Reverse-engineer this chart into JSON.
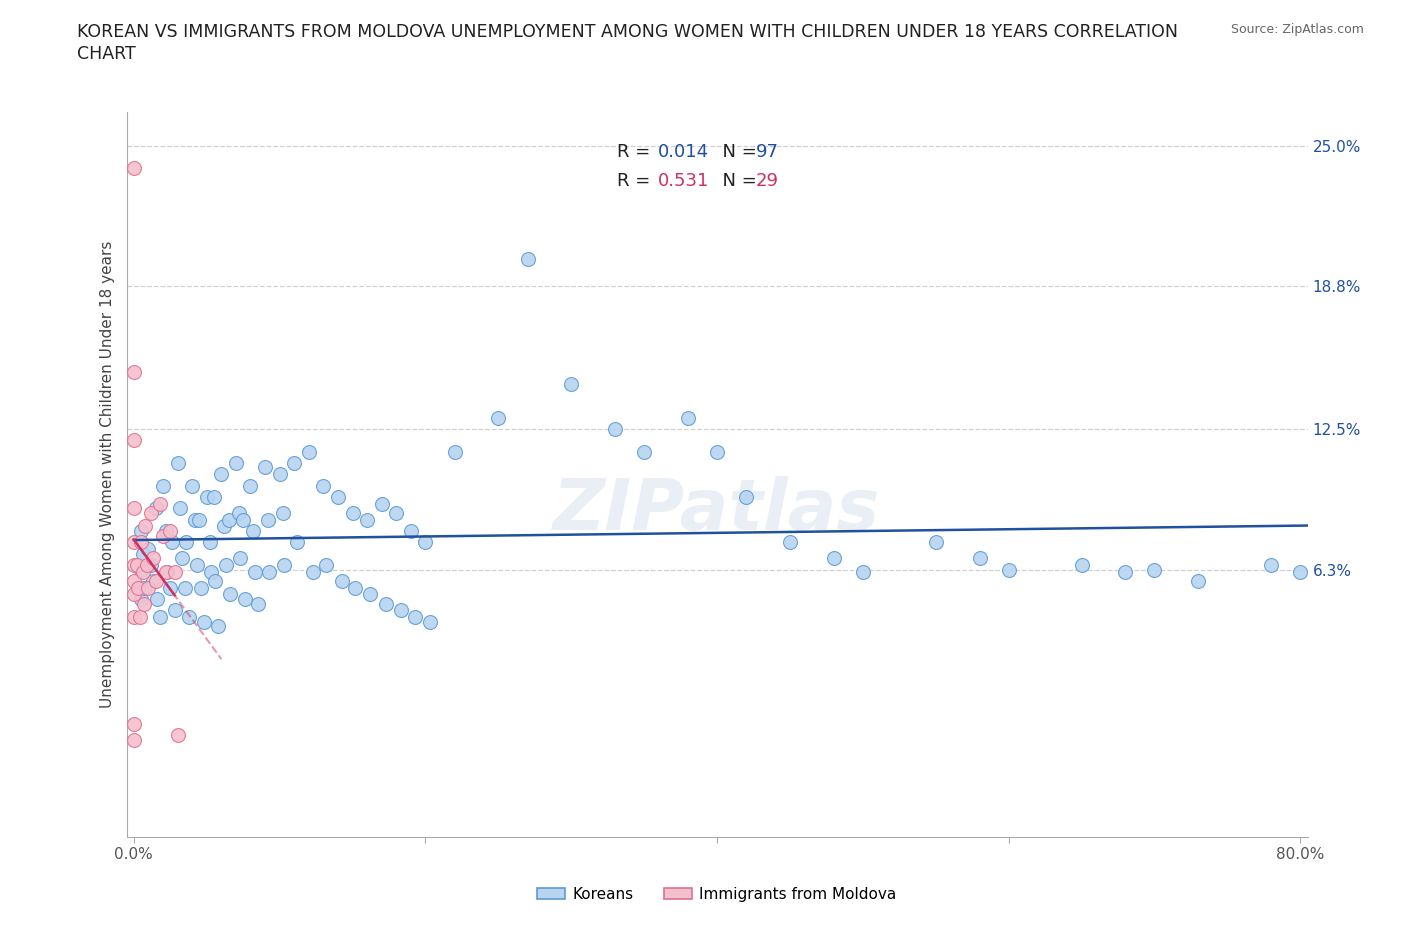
{
  "title": "KOREAN VS IMMIGRANTS FROM MOLDOVA UNEMPLOYMENT AMONG WOMEN WITH CHILDREN UNDER 18 YEARS CORRELATION\nCHART",
  "source": "Source: ZipAtlas.com",
  "ylabel": "Unemployment Among Women with Children Under 18 years",
  "xlim": [
    -0.005,
    0.805
  ],
  "ylim": [
    -0.055,
    0.265
  ],
  "ytick_right_labels": [
    "6.3%",
    "12.5%",
    "18.8%",
    "25.0%"
  ],
  "ytick_right_values": [
    0.063,
    0.125,
    0.188,
    0.25
  ],
  "background_color": "#ffffff",
  "grid_color": "#d0d0d0",
  "korean_color": "#b8d4f0",
  "korean_edge_color": "#5b9bd5",
  "moldova_color": "#f5c0ce",
  "moldova_edge_color": "#e07090",
  "korean_line_color": "#2050a0",
  "moldova_line_color": "#d03060",
  "R_korean": 0.014,
  "N_korean": 97,
  "R_moldova": 0.531,
  "N_moldova": 29,
  "korean_scatter_x": [
    0.005,
    0.005,
    0.005,
    0.006,
    0.007,
    0.01,
    0.012,
    0.013,
    0.015,
    0.016,
    0.018,
    0.02,
    0.022,
    0.023,
    0.025,
    0.026,
    0.028,
    0.03,
    0.032,
    0.033,
    0.035,
    0.036,
    0.038,
    0.04,
    0.042,
    0.043,
    0.045,
    0.046,
    0.048,
    0.05,
    0.052,
    0.053,
    0.055,
    0.056,
    0.058,
    0.06,
    0.062,
    0.063,
    0.065,
    0.066,
    0.07,
    0.072,
    0.073,
    0.075,
    0.076,
    0.08,
    0.082,
    0.083,
    0.085,
    0.09,
    0.092,
    0.093,
    0.1,
    0.102,
    0.103,
    0.11,
    0.112,
    0.12,
    0.123,
    0.13,
    0.132,
    0.14,
    0.143,
    0.15,
    0.152,
    0.16,
    0.162,
    0.17,
    0.173,
    0.18,
    0.183,
    0.19,
    0.193,
    0.2,
    0.203,
    0.22,
    0.25,
    0.27,
    0.3,
    0.33,
    0.35,
    0.38,
    0.4,
    0.42,
    0.45,
    0.48,
    0.5,
    0.55,
    0.58,
    0.6,
    0.65,
    0.68,
    0.7,
    0.73,
    0.78,
    0.8
  ],
  "korean_scatter_y": [
    0.08,
    0.063,
    0.05,
    0.07,
    0.055,
    0.072,
    0.065,
    0.058,
    0.09,
    0.05,
    0.042,
    0.1,
    0.08,
    0.062,
    0.055,
    0.075,
    0.045,
    0.11,
    0.09,
    0.068,
    0.055,
    0.075,
    0.042,
    0.1,
    0.085,
    0.065,
    0.085,
    0.055,
    0.04,
    0.095,
    0.075,
    0.062,
    0.095,
    0.058,
    0.038,
    0.105,
    0.082,
    0.065,
    0.085,
    0.052,
    0.11,
    0.088,
    0.068,
    0.085,
    0.05,
    0.1,
    0.08,
    0.062,
    0.048,
    0.108,
    0.085,
    0.062,
    0.105,
    0.088,
    0.065,
    0.11,
    0.075,
    0.115,
    0.062,
    0.1,
    0.065,
    0.095,
    0.058,
    0.088,
    0.055,
    0.085,
    0.052,
    0.092,
    0.048,
    0.088,
    0.045,
    0.08,
    0.042,
    0.075,
    0.04,
    0.115,
    0.13,
    0.2,
    0.145,
    0.125,
    0.115,
    0.13,
    0.115,
    0.095,
    0.075,
    0.068,
    0.062,
    0.075,
    0.068,
    0.063,
    0.065,
    0.062,
    0.063,
    0.058,
    0.065,
    0.062
  ],
  "moldova_scatter_x": [
    0.0,
    0.0,
    0.0,
    0.0,
    0.0,
    0.0,
    0.0,
    0.0,
    0.0,
    0.0,
    0.0,
    0.002,
    0.003,
    0.004,
    0.005,
    0.006,
    0.007,
    0.008,
    0.009,
    0.01,
    0.012,
    0.013,
    0.015,
    0.018,
    0.02,
    0.022,
    0.025,
    0.028,
    0.03
  ],
  "moldova_scatter_y": [
    0.24,
    0.15,
    0.12,
    0.09,
    0.075,
    0.065,
    0.058,
    0.052,
    0.042,
    -0.005,
    -0.012,
    0.065,
    0.055,
    0.042,
    0.075,
    0.062,
    0.048,
    0.082,
    0.065,
    0.055,
    0.088,
    0.068,
    0.058,
    0.092,
    0.078,
    0.062,
    0.08,
    0.062,
    -0.01
  ]
}
